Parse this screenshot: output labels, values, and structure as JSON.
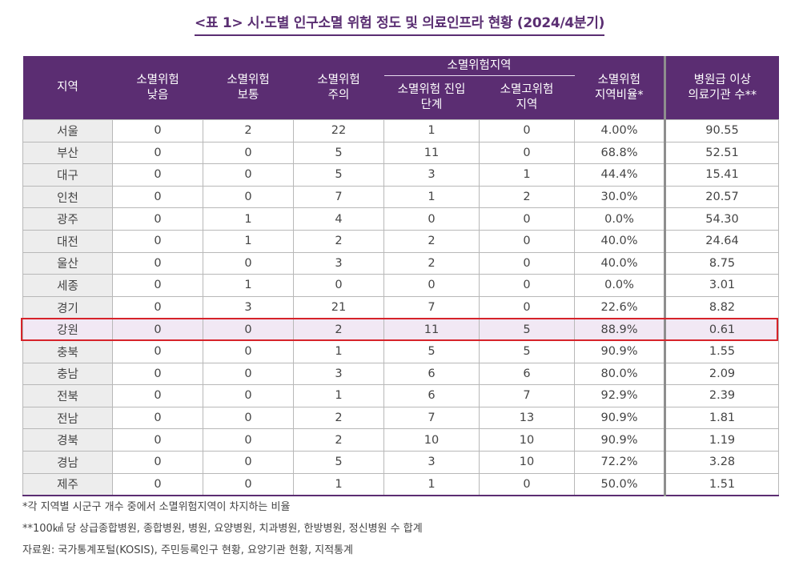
{
  "title": "<표 1> 시·도별 인구소멸 위험 정도 및 의료인프라 현황 (2024/4분기)",
  "headers": {
    "region": "지역",
    "low": [
      "소멸위험",
      "낮음"
    ],
    "normal": [
      "소멸위험",
      "보통"
    ],
    "caution": [
      "소멸위험",
      "주의"
    ],
    "group": "소멸위험지역",
    "entry": [
      "소멸위험 진입",
      "단계"
    ],
    "high": [
      "소멸고위험",
      "지역"
    ],
    "ratio": [
      "소멸위험",
      "지역비율*"
    ],
    "hospitals": [
      "병원급 이상",
      "의료기관 수**"
    ]
  },
  "rows": [
    {
      "region": "서울",
      "low": "0",
      "normal": "2",
      "caution": "22",
      "entry": "1",
      "high": "0",
      "ratio": "4.00%",
      "hosp": "90.55"
    },
    {
      "region": "부산",
      "low": "0",
      "normal": "0",
      "caution": "5",
      "entry": "11",
      "high": "0",
      "ratio": "68.8%",
      "hosp": "52.51"
    },
    {
      "region": "대구",
      "low": "0",
      "normal": "0",
      "caution": "5",
      "entry": "3",
      "high": "1",
      "ratio": "44.4%",
      "hosp": "15.41"
    },
    {
      "region": "인천",
      "low": "0",
      "normal": "0",
      "caution": "7",
      "entry": "1",
      "high": "2",
      "ratio": "30.0%",
      "hosp": "20.57"
    },
    {
      "region": "광주",
      "low": "0",
      "normal": "1",
      "caution": "4",
      "entry": "0",
      "high": "0",
      "ratio": "0.0%",
      "hosp": "54.30"
    },
    {
      "region": "대전",
      "low": "0",
      "normal": "1",
      "caution": "2",
      "entry": "2",
      "high": "0",
      "ratio": "40.0%",
      "hosp": "24.64"
    },
    {
      "region": "울산",
      "low": "0",
      "normal": "0",
      "caution": "3",
      "entry": "2",
      "high": "0",
      "ratio": "40.0%",
      "hosp": "8.75"
    },
    {
      "region": "세종",
      "low": "0",
      "normal": "1",
      "caution": "0",
      "entry": "0",
      "high": "0",
      "ratio": "0.0%",
      "hosp": "3.01"
    },
    {
      "region": "경기",
      "low": "0",
      "normal": "3",
      "caution": "21",
      "entry": "7",
      "high": "0",
      "ratio": "22.6%",
      "hosp": "8.82"
    },
    {
      "region": "강원",
      "low": "0",
      "normal": "0",
      "caution": "2",
      "entry": "11",
      "high": "5",
      "ratio": "88.9%",
      "hosp": "0.61"
    },
    {
      "region": "충북",
      "low": "0",
      "normal": "0",
      "caution": "1",
      "entry": "5",
      "high": "5",
      "ratio": "90.9%",
      "hosp": "1.55"
    },
    {
      "region": "충남",
      "low": "0",
      "normal": "0",
      "caution": "3",
      "entry": "6",
      "high": "6",
      "ratio": "80.0%",
      "hosp": "2.09"
    },
    {
      "region": "전북",
      "low": "0",
      "normal": "0",
      "caution": "1",
      "entry": "6",
      "high": "7",
      "ratio": "92.9%",
      "hosp": "2.39"
    },
    {
      "region": "전남",
      "low": "0",
      "normal": "0",
      "caution": "2",
      "entry": "7",
      "high": "13",
      "ratio": "90.9%",
      "hosp": "1.81"
    },
    {
      "region": "경북",
      "low": "0",
      "normal": "0",
      "caution": "2",
      "entry": "10",
      "high": "10",
      "ratio": "90.9%",
      "hosp": "1.19"
    },
    {
      "region": "경남",
      "low": "0",
      "normal": "0",
      "caution": "5",
      "entry": "3",
      "high": "10",
      "ratio": "72.2%",
      "hosp": "3.28"
    },
    {
      "region": "제주",
      "low": "0",
      "normal": "0",
      "caution": "1",
      "entry": "1",
      "high": "0",
      "ratio": "50.0%",
      "hosp": "1.51"
    }
  ],
  "highlight_row": 9,
  "colors": {
    "header": "#5b2d72",
    "highlight_border": "#d6232a",
    "highlight_fill": "#f1e8f4"
  },
  "notes": [
    "*각 지역별 시군구 개수 중에서 소멸위험지역이 차지하는 비율",
    "**100㎢ 당 상급종합병원, 종합병원, 병원, 요양병원, 치과병원, 한방병원, 정신병원 수 합계",
    "자료원: 국가통계포털(KOSIS), 주민등록인구 현황, 요양기관 현황, 지적통계"
  ]
}
